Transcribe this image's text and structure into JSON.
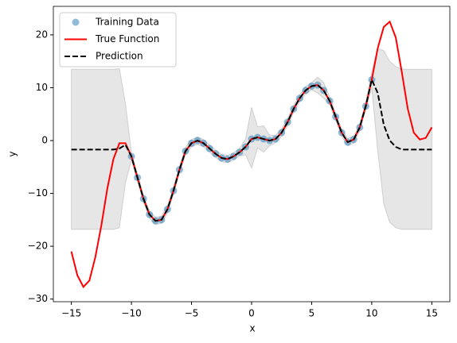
{
  "chart_data": {
    "type": "line",
    "xlabel": "x",
    "ylabel": "y",
    "xlim": [
      -16.5,
      16.5
    ],
    "ylim": [
      -30.5,
      25.4
    ],
    "xticks": [
      {
        "value": -15,
        "label": "−15"
      },
      {
        "value": -10,
        "label": "−10"
      },
      {
        "value": -5,
        "label": "−5"
      },
      0,
      5,
      10,
      15
    ],
    "yticks": [
      {
        "value": -30,
        "label": "−30"
      },
      {
        "value": -20,
        "label": "−20"
      },
      {
        "value": -10,
        "label": "−10"
      },
      0,
      10,
      20
    ],
    "legend": "upper left",
    "series": [
      {
        "name": "Training Data",
        "kind": "scatter",
        "color": "#1f77b4",
        "x": [
          -10,
          -9.5,
          -9,
          -8.5,
          -8,
          -7.5,
          -7,
          -6.5,
          -6,
          -5.5,
          -5,
          -4.5,
          -4,
          -3.5,
          -3,
          -2.5,
          -2,
          -1.5,
          -1,
          -0.5,
          0,
          0.5,
          1,
          1.5,
          2,
          2.5,
          3,
          3.5,
          4,
          4.5,
          5,
          5.5,
          6,
          6.5,
          7,
          7.5,
          8,
          8.5,
          9,
          9.5,
          10
        ],
        "values": [
          -3,
          -7,
          -11,
          -14,
          -15.2,
          -15,
          -13,
          -9.5,
          -5.5,
          -2,
          -0.5,
          0,
          -0.5,
          -1.5,
          -2.5,
          -3.3,
          -3.5,
          -3,
          -2.2,
          -1.2,
          0.3,
          0.6,
          0.3,
          0,
          0.3,
          1.5,
          3.5,
          6,
          8,
          9.5,
          10.3,
          10.5,
          9.5,
          7.5,
          4.5,
          1.5,
          -0.3,
          0.2,
          2.5,
          6.5,
          11.5
        ]
      },
      {
        "name": "True Function",
        "kind": "line",
        "color": "#ff0000",
        "x": [
          -15,
          -14.5,
          -14,
          -13.5,
          -13,
          -12.5,
          -12,
          -11.5,
          -11,
          -10.5,
          -10,
          -9.5,
          -9,
          -8.5,
          -8,
          -7.5,
          -7,
          -6.5,
          -6,
          -5.5,
          -5,
          -4.5,
          -4,
          -3.5,
          -3,
          -2.5,
          -2,
          -1.5,
          -1,
          -0.5,
          0,
          0.5,
          1,
          1.5,
          2,
          2.5,
          3,
          3.5,
          4,
          4.5,
          5,
          5.5,
          6,
          6.5,
          7,
          7.5,
          8,
          8.5,
          9,
          9.5,
          10,
          10.5,
          11,
          11.5,
          12,
          12.5,
          13,
          13.5,
          14,
          14.5,
          15
        ],
        "values": [
          -21,
          -25.5,
          -27.7,
          -26.5,
          -22,
          -16,
          -9,
          -3.5,
          -0.5,
          -0.5,
          -3,
          -7,
          -11,
          -14,
          -15.2,
          -15,
          -13,
          -9.5,
          -5.5,
          -2,
          -0.5,
          0,
          -0.5,
          -1.5,
          -2.5,
          -3.3,
          -3.5,
          -3,
          -2.2,
          -1.2,
          0.3,
          0.6,
          0.3,
          0,
          0.3,
          1.5,
          3.5,
          6,
          8,
          9.5,
          10.3,
          10.5,
          9.5,
          7.5,
          4.5,
          1.5,
          -0.3,
          0.2,
          2.5,
          6.5,
          11.5,
          17.5,
          21.5,
          22.5,
          19.5,
          13,
          6,
          1.5,
          0.2,
          0.5,
          2.5
        ]
      },
      {
        "name": "Prediction",
        "kind": "dashed",
        "color": "#000000",
        "band_color": "#808080",
        "x": [
          -15,
          -14.5,
          -14,
          -13.5,
          -13,
          -12.5,
          -12,
          -11.5,
          -11,
          -10.5,
          -10,
          -9.5,
          -9,
          -8.5,
          -8,
          -7.5,
          -7,
          -6.5,
          -6,
          -5.5,
          -5,
          -4.5,
          -4,
          -3.5,
          -3,
          -2.5,
          -2,
          -1.5,
          -1,
          -0.5,
          0,
          0.5,
          1,
          1.5,
          2,
          2.5,
          3,
          3.5,
          4,
          4.5,
          5,
          5.5,
          6,
          6.5,
          7,
          7.5,
          8,
          8.5,
          9,
          9.5,
          10,
          10.5,
          11,
          11.5,
          12,
          12.5,
          13,
          13.5,
          14,
          14.5,
          15
        ],
        "values": [
          -1.7,
          -1.7,
          -1.7,
          -1.7,
          -1.7,
          -1.7,
          -1.7,
          -1.7,
          -1.5,
          -0.8,
          -3,
          -7,
          -11,
          -14,
          -15.2,
          -15,
          -13,
          -9.5,
          -5.5,
          -2,
          -0.5,
          0,
          -0.5,
          -1.5,
          -2.5,
          -3.3,
          -3.5,
          -3,
          -2.2,
          -1.2,
          0.3,
          0.6,
          0.3,
          0,
          0.3,
          1.5,
          3.5,
          6,
          8,
          9.5,
          10.3,
          10.5,
          9.5,
          7.5,
          4.5,
          1.5,
          -0.3,
          0.2,
          2.5,
          6.5,
          11.5,
          9,
          3,
          0,
          -1.2,
          -1.7,
          -1.7,
          -1.7,
          -1.7,
          -1.7,
          -1.7
        ],
        "lower": [
          -16.8,
          -16.8,
          -16.8,
          -16.8,
          -16.8,
          -16.8,
          -16.8,
          -16.8,
          -16.5,
          -8,
          -3.7,
          -7.7,
          -11.7,
          -14.7,
          -15.9,
          -15.7,
          -13.7,
          -10.2,
          -6.2,
          -2.7,
          -1.2,
          -0.7,
          -1.2,
          -2.2,
          -3.2,
          -4,
          -4.2,
          -3.7,
          -2.9,
          -2.7,
          -5.2,
          -1.4,
          -2.2,
          -1,
          -0.4,
          0.8,
          2.8,
          5.3,
          7.3,
          8.8,
          9.6,
          9,
          8,
          6.8,
          3.8,
          0.8,
          -1,
          -0.5,
          1.8,
          5.8,
          10,
          -2,
          -12,
          -15.5,
          -16.5,
          -16.8,
          -16.8,
          -16.8,
          -16.8,
          -16.8,
          -16.8
        ],
        "upper": [
          13.5,
          13.5,
          13.5,
          13.5,
          13.5,
          13.5,
          13.5,
          13.5,
          13.6,
          7,
          -2.3,
          -6.3,
          -10.3,
          -13.3,
          -14.5,
          -14.3,
          -12.3,
          -8.8,
          -4.8,
          -1.3,
          0.2,
          0.7,
          0.2,
          -0.8,
          -1.8,
          -2.6,
          -2.8,
          -2.3,
          -1.5,
          0.3,
          6.3,
          2.6,
          2.8,
          1,
          1,
          2.2,
          4.2,
          6.7,
          8.7,
          10.2,
          11,
          12,
          11,
          8.2,
          5.2,
          2.2,
          0.4,
          0.9,
          3.2,
          7.2,
          13,
          17.5,
          17,
          15,
          14,
          13.5,
          13.5,
          13.5,
          13.5,
          13.5,
          13.5
        ]
      }
    ]
  }
}
